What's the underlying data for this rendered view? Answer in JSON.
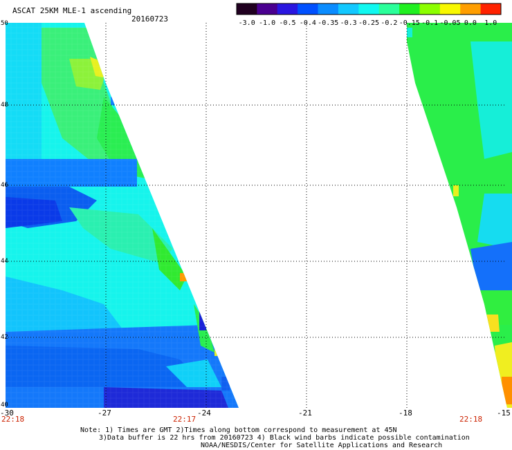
{
  "header": {
    "title": "ASCAT 25KM MLE-1 ascending",
    "date": "20160723"
  },
  "colorbar": {
    "labels": [
      "-3.0",
      "-1.0",
      "-0.5",
      "-0.4",
      "-0.35",
      "-0.3",
      "-0.25",
      "-0.2",
      "-0.15",
      "-0.1",
      "-0.05",
      "0.0",
      "1.0"
    ],
    "colors": [
      "#200020",
      "#4a0090",
      "#2a16e0",
      "#0050ff",
      "#0a8cff",
      "#12c8ff",
      "#10f8f0",
      "#2aff9a",
      "#20f020",
      "#8cff00",
      "#f8f800",
      "#ff9e00",
      "#ff2200"
    ]
  },
  "axes": {
    "lat_labels": [
      "50",
      "48",
      "46",
      "44",
      "42",
      "40"
    ],
    "lon_labels": [
      "-30",
      "-27",
      "-24",
      "-21",
      "-18",
      "-15"
    ]
  },
  "times": [
    "22:18",
    "22:17",
    "22:18"
  ],
  "notes": {
    "line1": "Note: 1) Times are GMT 2)Times along bottom correspond to measurement at 45N",
    "line2": "3)Data buffer is 22 hrs from 20160723 4) Black wind barbs indicate possible contamination",
    "line3": "NOAA/NESDIS/Center for Satellite Applications and Research"
  }
}
